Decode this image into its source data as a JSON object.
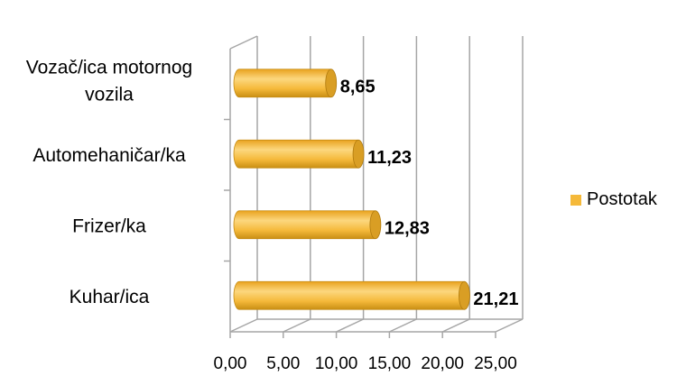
{
  "chart_data": {
    "type": "bar",
    "orientation": "horizontal",
    "style": "3d-cylinder",
    "categories": [
      "Vozač/ica motornog vozila",
      "Automehaničar/ka",
      "Frizer/ka",
      "Kuhar/ica"
    ],
    "category_lines": [
      [
        "Vozač/ica motornog",
        "vozila"
      ],
      [
        "Automehaničar/ka"
      ],
      [
        "Frizer/ka"
      ],
      [
        "Kuhar/ica"
      ]
    ],
    "series": [
      {
        "name": "Postotak",
        "values": [
          8.65,
          11.23,
          12.83,
          21.21
        ],
        "labels": [
          "8,65",
          "11,23",
          "12,83",
          "21,21"
        ]
      }
    ],
    "xlim": [
      0,
      25
    ],
    "xticks": [
      0,
      5,
      10,
      15,
      20,
      25
    ],
    "xtick_labels": [
      "0,00",
      "5,00",
      "10,00",
      "15,00",
      "20,00",
      "25,00"
    ],
    "grid": "vertical",
    "legend_position": "right",
    "title": "",
    "xlabel": "",
    "ylabel": "",
    "colors": {
      "bar": "#F5B93A",
      "bar_dark": "#C98F14",
      "bar_light": "#FCD77E",
      "grid": "#A6A6A6"
    }
  }
}
